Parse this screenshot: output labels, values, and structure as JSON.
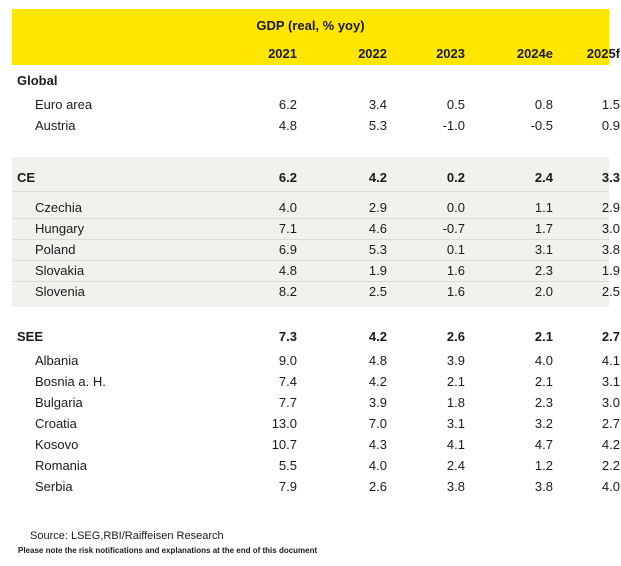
{
  "header": {
    "title": "GDP (real, % yoy)",
    "years": [
      "2021",
      "2022",
      "2023",
      "2024e",
      "2025f"
    ]
  },
  "sections": [
    {
      "label": "Global",
      "values": [
        "",
        "",
        "",
        "",
        ""
      ],
      "rows": [
        {
          "label": "Euro area",
          "values": [
            "6.2",
            "3.4",
            "0.5",
            "0.8",
            "1.5"
          ]
        },
        {
          "label": "Austria",
          "values": [
            "4.8",
            "5.3",
            "-1.0",
            "-0.5",
            "0.9"
          ]
        }
      ]
    },
    {
      "label": "CE",
      "values": [
        "6.2",
        "4.2",
        "0.2",
        "2.4",
        "3.3"
      ],
      "rows": [
        {
          "label": "Czechia",
          "values": [
            "4.0",
            "2.9",
            "0.0",
            "1.1",
            "2.9"
          ]
        },
        {
          "label": "Hungary",
          "values": [
            "7.1",
            "4.6",
            "-0.7",
            "1.7",
            "3.0"
          ]
        },
        {
          "label": "Poland",
          "values": [
            "6.9",
            "5.3",
            "0.1",
            "3.1",
            "3.8"
          ]
        },
        {
          "label": "Slovakia",
          "values": [
            "4.8",
            "1.9",
            "1.6",
            "2.3",
            "1.9"
          ]
        },
        {
          "label": "Slovenia",
          "values": [
            "8.2",
            "2.5",
            "1.6",
            "2.0",
            "2.5"
          ]
        }
      ]
    },
    {
      "label": "SEE",
      "values": [
        "7.3",
        "4.2",
        "2.6",
        "2.1",
        "2.7"
      ],
      "rows": [
        {
          "label": "Albania",
          "values": [
            "9.0",
            "4.8",
            "3.9",
            "4.0",
            "4.1"
          ]
        },
        {
          "label": "Bosnia a. H.",
          "values": [
            "7.4",
            "4.2",
            "2.1",
            "2.1",
            "3.1"
          ]
        },
        {
          "label": "Bulgaria",
          "values": [
            "7.7",
            "3.9",
            "1.8",
            "2.3",
            "3.0"
          ]
        },
        {
          "label": "Croatia",
          "values": [
            "13.0",
            "7.0",
            "3.1",
            "3.2",
            "2.7"
          ]
        },
        {
          "label": "Kosovo",
          "values": [
            "10.7",
            "4.3",
            "4.1",
            "4.7",
            "4.2"
          ]
        },
        {
          "label": "Romania",
          "values": [
            "5.5",
            "4.0",
            "2.4",
            "1.2",
            "2.2"
          ]
        },
        {
          "label": "Serbia",
          "values": [
            "7.9",
            "2.6",
            "3.8",
            "3.8",
            "4.0"
          ]
        }
      ]
    }
  ],
  "footer": {
    "source": "Source: LSEG,RBI/Raiffeisen Research",
    "note": "Please note the risk notifications and explanations at the end of this document"
  }
}
